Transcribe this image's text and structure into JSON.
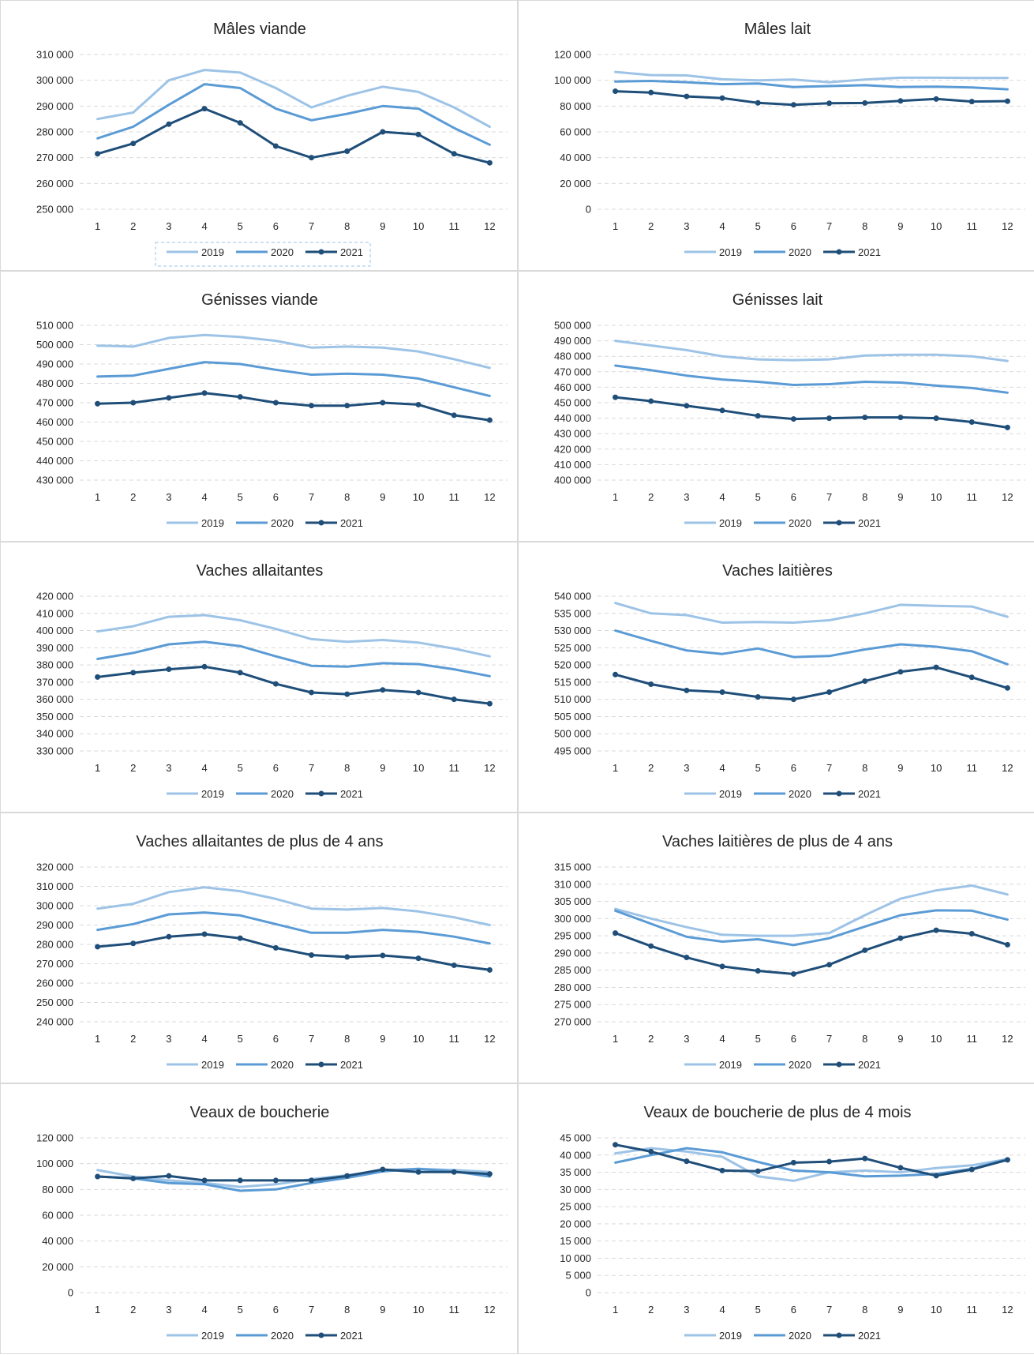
{
  "colors": {
    "s2019": "#9dc3e6",
    "s2020": "#5b9bd5",
    "s2021": "#1f4e79",
    "grid": "#d9d9d9",
    "text": "#262626"
  },
  "chart_data": [
    {
      "type": "line",
      "title": "Mâles viande",
      "categories": [
        "1",
        "2",
        "3",
        "4",
        "5",
        "6",
        "7",
        "8",
        "9",
        "10",
        "11",
        "12"
      ],
      "ylim": [
        250000,
        310000
      ],
      "ystep": 10000,
      "yticks": [
        "250 000",
        "260 000",
        "270 000",
        "280 000",
        "290 000",
        "300 000",
        "310 000"
      ],
      "legend": "bottom",
      "legend_selected": true,
      "series": [
        {
          "name": "2019",
          "values": [
            285000,
            287500,
            300000,
            304000,
            303000,
            297000,
            289500,
            294000,
            297500,
            295500,
            289500,
            282000
          ]
        },
        {
          "name": "2020",
          "values": [
            277500,
            282000,
            290500,
            298500,
            297000,
            289000,
            284500,
            287000,
            290000,
            289000,
            281500,
            275000
          ]
        },
        {
          "name": "2021",
          "values": [
            271500,
            275500,
            283000,
            289000,
            283500,
            274500,
            270000,
            272500,
            280000,
            279000,
            271500,
            268000
          ]
        }
      ]
    },
    {
      "type": "line",
      "title": "Mâles lait",
      "categories": [
        "1",
        "2",
        "3",
        "4",
        "5",
        "6",
        "7",
        "8",
        "9",
        "10",
        "11",
        "12"
      ],
      "ylim": [
        0,
        120000
      ],
      "ystep": 20000,
      "yticks": [
        "0",
        "20 000",
        "40 000",
        "60 000",
        "80 000",
        "100 000",
        "120 000"
      ],
      "legend": "bottom",
      "series": [
        {
          "name": "2019",
          "values": [
            106500,
            104000,
            103800,
            100800,
            100000,
            100500,
            98500,
            100500,
            102000,
            102000,
            101800,
            101800
          ]
        },
        {
          "name": "2020",
          "values": [
            99000,
            99500,
            98500,
            97000,
            97500,
            94800,
            95500,
            96200,
            94800,
            95000,
            94500,
            93000
          ]
        },
        {
          "name": "2021",
          "values": [
            91500,
            90500,
            87500,
            86200,
            82500,
            81000,
            82200,
            82400,
            84000,
            85500,
            83500,
            83800
          ]
        }
      ]
    },
    {
      "type": "line",
      "title": "Génisses viande",
      "categories": [
        "1",
        "2",
        "3",
        "4",
        "5",
        "6",
        "7",
        "8",
        "9",
        "10",
        "11",
        "12"
      ],
      "ylim": [
        430000,
        510000
      ],
      "ystep": 10000,
      "yticks": [
        "430 000",
        "440 000",
        "450 000",
        "460 000",
        "470 000",
        "480 000",
        "490 000",
        "500 000",
        "510 000"
      ],
      "legend": "bottom",
      "series": [
        {
          "name": "2019",
          "values": [
            499500,
            499000,
            503500,
            505000,
            504000,
            502000,
            498500,
            499000,
            498500,
            496500,
            492500,
            488000
          ]
        },
        {
          "name": "2020",
          "values": [
            483500,
            484000,
            487500,
            491000,
            490000,
            487000,
            484500,
            485000,
            484500,
            482500,
            478000,
            473500
          ]
        },
        {
          "name": "2021",
          "values": [
            469500,
            470000,
            472500,
            475000,
            473000,
            470000,
            468500,
            468500,
            470000,
            469000,
            463500,
            461000
          ]
        }
      ]
    },
    {
      "type": "line",
      "title": "Génisses lait",
      "categories": [
        "1",
        "2",
        "3",
        "4",
        "5",
        "6",
        "7",
        "8",
        "9",
        "10",
        "11",
        "12"
      ],
      "ylim": [
        400000,
        500000
      ],
      "ystep": 10000,
      "yticks": [
        "400 000",
        "410 000",
        "420 000",
        "430 000",
        "440 000",
        "450 000",
        "460 000",
        "470 000",
        "480 000",
        "490 000",
        "500 000"
      ],
      "legend": "bottom",
      "series": [
        {
          "name": "2019",
          "values": [
            490000,
            487000,
            484000,
            480000,
            478000,
            477500,
            478000,
            480500,
            481000,
            481000,
            480000,
            477000
          ]
        },
        {
          "name": "2020",
          "values": [
            474000,
            471000,
            467500,
            465000,
            463500,
            461500,
            462000,
            463500,
            463000,
            461000,
            459500,
            456500
          ]
        },
        {
          "name": "2021",
          "values": [
            453500,
            451000,
            448000,
            445000,
            441500,
            439500,
            440000,
            440500,
            440500,
            440000,
            437500,
            434000
          ]
        }
      ]
    },
    {
      "type": "line",
      "title": "Vaches allaitantes",
      "categories": [
        "1",
        "2",
        "3",
        "4",
        "5",
        "6",
        "7",
        "8",
        "9",
        "10",
        "11",
        "12"
      ],
      "ylim": [
        330000,
        420000
      ],
      "ystep": 10000,
      "yticks": [
        "330 000",
        "340 000",
        "350 000",
        "360 000",
        "370 000",
        "380 000",
        "390 000",
        "400 000",
        "410 000",
        "420 000"
      ],
      "legend": "bottom",
      "series": [
        {
          "name": "2019",
          "values": [
            399500,
            402500,
            408000,
            409000,
            406000,
            401000,
            395000,
            393500,
            394500,
            393000,
            389500,
            385000
          ]
        },
        {
          "name": "2020",
          "values": [
            383500,
            387000,
            392000,
            393500,
            391000,
            385000,
            379500,
            379000,
            381000,
            380500,
            377500,
            373500
          ]
        },
        {
          "name": "2021",
          "values": [
            373000,
            375500,
            377500,
            379000,
            375500,
            369000,
            364000,
            363000,
            365500,
            364000,
            360000,
            357500
          ]
        }
      ]
    },
    {
      "type": "line",
      "title": "Vaches laitières",
      "categories": [
        "1",
        "2",
        "3",
        "4",
        "5",
        "6",
        "7",
        "8",
        "9",
        "10",
        "11",
        "12"
      ],
      "ylim": [
        495000,
        540000
      ],
      "ystep": 5000,
      "yticks": [
        "495 000",
        "500 000",
        "505 000",
        "510 000",
        "515 000",
        "520 000",
        "525 000",
        "530 000",
        "535 000",
        "540 000"
      ],
      "legend": "bottom",
      "series": [
        {
          "name": "2019",
          "values": [
            538000,
            535000,
            534500,
            532300,
            532500,
            532300,
            533000,
            535000,
            537500,
            537200,
            537000,
            534000
          ]
        },
        {
          "name": "2020",
          "values": [
            530000,
            527000,
            524200,
            523200,
            524800,
            522300,
            522600,
            524500,
            526000,
            525300,
            524000,
            520200
          ]
        },
        {
          "name": "2021",
          "values": [
            517200,
            514400,
            512600,
            512100,
            510700,
            510000,
            512100,
            515300,
            518000,
            519300,
            516400,
            513300
          ]
        }
      ]
    },
    {
      "type": "line",
      "title": "Vaches allaitantes de plus de 4 ans",
      "categories": [
        "1",
        "2",
        "3",
        "4",
        "5",
        "6",
        "7",
        "8",
        "9",
        "10",
        "11",
        "12"
      ],
      "ylim": [
        240000,
        320000
      ],
      "ystep": 10000,
      "yticks": [
        "240 000",
        "250 000",
        "260 000",
        "270 000",
        "280 000",
        "290 000",
        "300 000",
        "310 000",
        "320 000"
      ],
      "legend": "bottom",
      "series": [
        {
          "name": "2019",
          "values": [
            298500,
            301000,
            307000,
            309500,
            307500,
            303500,
            298500,
            298000,
            298800,
            297000,
            294000,
            290000
          ]
        },
        {
          "name": "2020",
          "values": [
            287500,
            290500,
            295500,
            296500,
            295000,
            290500,
            286000,
            286000,
            287500,
            286500,
            284000,
            280500
          ]
        },
        {
          "name": "2021",
          "values": [
            278800,
            280500,
            284000,
            285300,
            283200,
            278200,
            274500,
            273500,
            274300,
            272800,
            269200,
            266800
          ]
        }
      ]
    },
    {
      "type": "line",
      "title": "Vaches laitières de plus de 4 ans",
      "categories": [
        "1",
        "2",
        "3",
        "4",
        "5",
        "6",
        "7",
        "8",
        "9",
        "10",
        "11",
        "12"
      ],
      "ylim": [
        270000,
        315000
      ],
      "ystep": 5000,
      "yticks": [
        "270 000",
        "275 000",
        "280 000",
        "285 000",
        "290 000",
        "295 000",
        "300 000",
        "305 000",
        "310 000",
        "315 000"
      ],
      "legend": "bottom",
      "series": [
        {
          "name": "2019",
          "values": [
            302800,
            300000,
            297500,
            295300,
            295000,
            295000,
            295800,
            301000,
            305800,
            308200,
            309600,
            307000
          ]
        },
        {
          "name": "2020",
          "values": [
            302300,
            298500,
            294700,
            293300,
            294000,
            292300,
            294300,
            297700,
            301000,
            302400,
            302300,
            299700
          ]
        },
        {
          "name": "2021",
          "values": [
            295800,
            292000,
            288700,
            286100,
            284800,
            283900,
            286600,
            290800,
            294300,
            296600,
            295600,
            292400
          ]
        }
      ]
    },
    {
      "type": "line",
      "title": "Veaux de boucherie",
      "categories": [
        "1",
        "2",
        "3",
        "4",
        "5",
        "6",
        "7",
        "8",
        "9",
        "10",
        "11",
        "12"
      ],
      "ylim": [
        0,
        120000
      ],
      "ystep": 20000,
      "yticks": [
        "0",
        "20 000",
        "40 000",
        "60 000",
        "80 000",
        "100 000",
        "120 000"
      ],
      "legend": "bottom",
      "series": [
        {
          "name": "2019",
          "values": [
            95000,
            90000,
            87000,
            85000,
            82000,
            84000,
            88000,
            91000,
            95000,
            96000,
            95000,
            93500
          ]
        },
        {
          "name": "2020",
          "values": [
            90000,
            88500,
            85000,
            84000,
            79000,
            80000,
            85000,
            89000,
            94000,
            96000,
            94000,
            90000
          ]
        },
        {
          "name": "2021",
          "values": [
            90000,
            88500,
            90500,
            87000,
            87000,
            87000,
            87000,
            90500,
            95500,
            93500,
            93500,
            92000
          ]
        }
      ]
    },
    {
      "type": "line",
      "title": "Veaux de boucherie de plus de 4 mois",
      "categories": [
        "1",
        "2",
        "3",
        "4",
        "5",
        "6",
        "7",
        "8",
        "9",
        "10",
        "11",
        "12"
      ],
      "ylim": [
        0,
        45000
      ],
      "ystep": 5000,
      "yticks": [
        "0",
        "5 000",
        "10 000",
        "15 000",
        "20 000",
        "25 000",
        "30 000",
        "35 000",
        "40 000",
        "45 000"
      ],
      "legend": "bottom",
      "series": [
        {
          "name": "2019",
          "values": [
            40500,
            42000,
            41000,
            39500,
            33800,
            32500,
            35000,
            35500,
            35000,
            36200,
            37000,
            38800
          ]
        },
        {
          "name": "2020",
          "values": [
            37800,
            40000,
            42000,
            40800,
            38000,
            35500,
            35000,
            33800,
            34000,
            34500,
            36000,
            38800
          ]
        },
        {
          "name": "2021",
          "values": [
            43000,
            41000,
            38200,
            35500,
            35300,
            37800,
            38100,
            39000,
            36300,
            34000,
            35800,
            38600
          ]
        }
      ]
    }
  ]
}
